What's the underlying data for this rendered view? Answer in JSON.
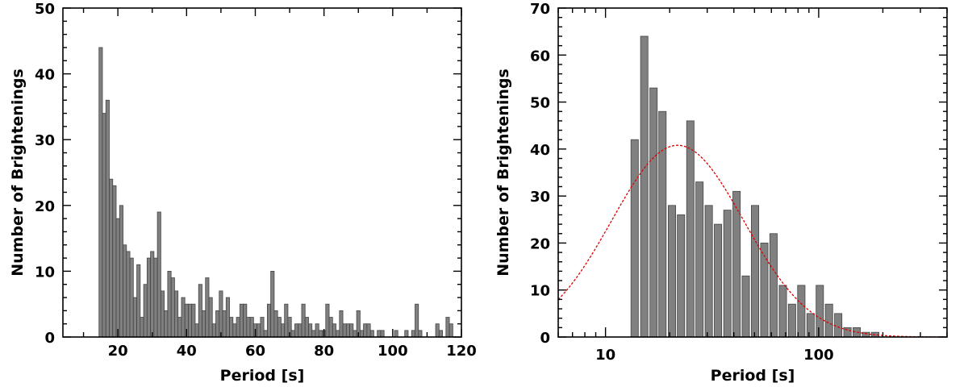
{
  "chart_data": [
    {
      "type": "bar",
      "xlabel": "Period [s]",
      "ylabel": "Number of Brightenings",
      "xlim": [
        4,
        120
      ],
      "ylim": [
        0,
        50
      ],
      "x_scale": "linear",
      "x_ticks": [
        20,
        40,
        60,
        80,
        100,
        120
      ],
      "y_ticks": [
        0,
        10,
        20,
        30,
        40,
        50
      ],
      "bin_width": 1,
      "series": [
        {
          "x": [
            15,
            16,
            17,
            18,
            19,
            20,
            21,
            22,
            23,
            24,
            25,
            26,
            27,
            28,
            29,
            30,
            31,
            32,
            33,
            34,
            35,
            36,
            37,
            38,
            39,
            40,
            41,
            42,
            43,
            44,
            45,
            46,
            47,
            48,
            49,
            50,
            51,
            52,
            53,
            54,
            55,
            56,
            57,
            58,
            59,
            60,
            61,
            62,
            63,
            64,
            65,
            66,
            67,
            68,
            69,
            70,
            71,
            72,
            73,
            74,
            75,
            76,
            77,
            78,
            79,
            80,
            81,
            82,
            83,
            84,
            85,
            86,
            87,
            88,
            89,
            90,
            91,
            92,
            93,
            94,
            95,
            96,
            97,
            98,
            99,
            100,
            101,
            102,
            103,
            104,
            105,
            106,
            107,
            108,
            109,
            110,
            111,
            112,
            113,
            114,
            115,
            116,
            117,
            118
          ],
          "values": [
            44,
            34,
            36,
            24,
            23,
            18,
            20,
            14,
            13,
            12,
            6,
            11,
            3,
            8,
            12,
            13,
            12,
            19,
            7,
            4,
            10,
            9,
            7,
            3,
            6,
            5,
            5,
            5,
            2,
            8,
            4,
            9,
            6,
            2,
            4,
            7,
            4,
            6,
            3,
            2,
            3,
            5,
            5,
            3,
            3,
            2,
            2,
            3,
            1,
            5,
            10,
            4,
            3,
            2,
            5,
            3,
            1,
            2,
            2,
            5,
            3,
            2,
            1,
            2,
            1,
            1,
            5,
            3,
            2,
            1,
            4,
            2,
            2,
            2,
            1,
            4,
            1,
            2,
            2,
            1,
            0,
            1,
            1,
            0,
            0,
            0,
            1,
            0,
            0,
            1,
            0,
            1,
            5,
            1,
            0,
            0,
            0,
            0,
            2,
            1,
            0,
            3,
            2,
            0
          ]
        }
      ]
    },
    {
      "type": "bar",
      "xlabel": "Period [s]",
      "ylabel": "Number of Brightenings",
      "xlim": [
        6,
        400
      ],
      "ylim": [
        0,
        70
      ],
      "x_scale": "log",
      "x_ticks": [
        10,
        100
      ],
      "y_ticks": [
        0,
        10,
        20,
        30,
        40,
        50,
        60,
        70
      ],
      "bin_ratio": 1.105,
      "series": [
        {
          "x": [
            13.7,
            15.2,
            16.8,
            18.5,
            20.5,
            22.6,
            25.0,
            27.6,
            30.5,
            33.7,
            37.3,
            41.2,
            45.5,
            50.3,
            55.6,
            61.4,
            67.9,
            75.0,
            82.9,
            91.6,
            101.2,
            111.8,
            123.5,
            136.5,
            150.8,
            166.7,
            184.2,
            203.5,
            224.9,
            248.5
          ],
          "values": [
            42,
            64,
            53,
            48,
            28,
            26,
            46,
            33,
            28,
            24,
            27,
            31,
            13,
            28,
            20,
            22,
            11,
            7,
            11,
            5,
            11,
            7,
            5,
            2,
            2,
            1,
            1,
            0,
            0,
            0
          ]
        }
      ],
      "fit": {
        "type": "lognormal-gaussian",
        "peak": 40.8,
        "center": 21.8,
        "sigma_log10": 0.31
      }
    }
  ]
}
